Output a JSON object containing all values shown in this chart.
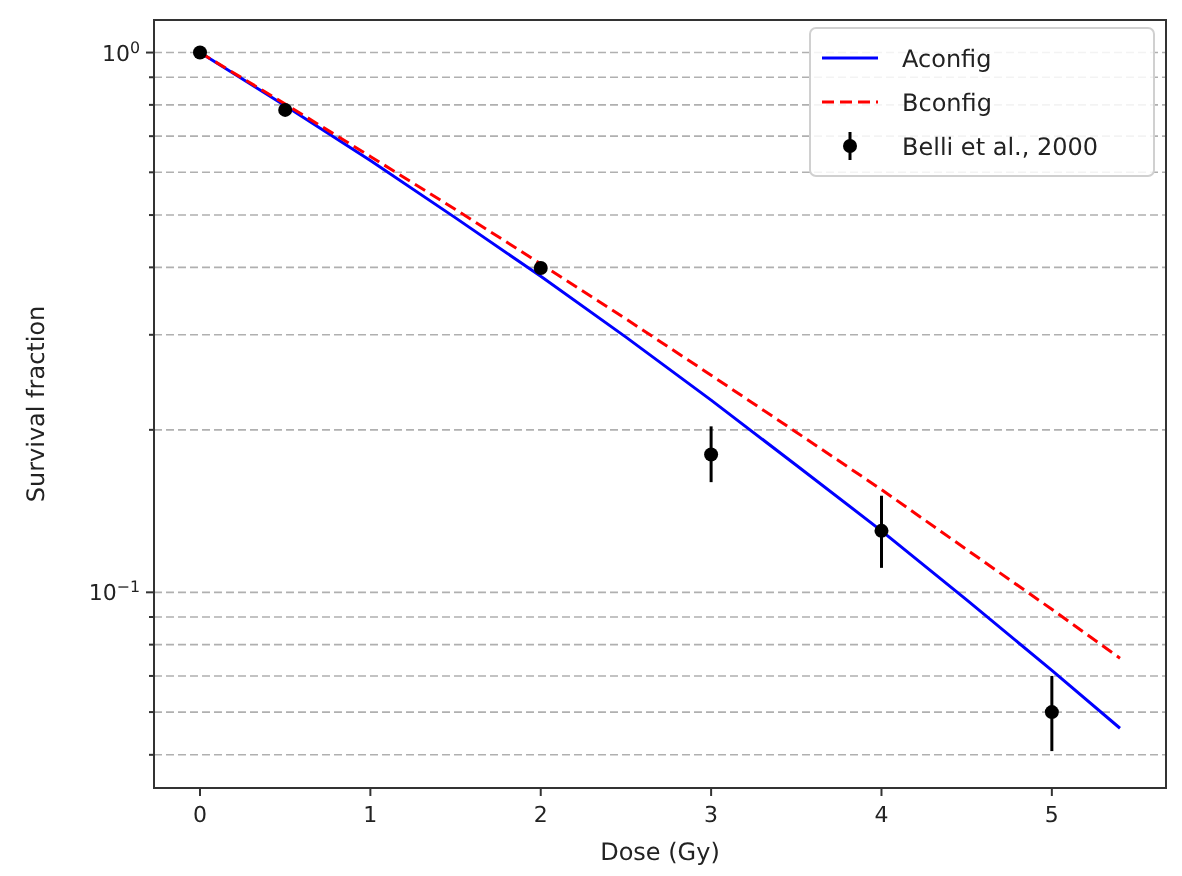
{
  "chart_data": {
    "type": "line",
    "xlabel": "Dose (Gy)",
    "ylabel": "Survival fraction",
    "log": "y",
    "grid": "y",
    "legend": "top right",
    "xlim": [
      -0.27,
      5.67
    ],
    "xticks": [
      0,
      1,
      2,
      3,
      4,
      5
    ],
    "ylim": [
      0.0434,
      1.149
    ],
    "yticks": [
      {
        "value": 0.05,
        "label": null
      },
      {
        "value": 0.06,
        "label": null
      },
      {
        "value": 0.07,
        "label": null
      },
      {
        "value": 0.08,
        "label": null
      },
      {
        "value": 0.09,
        "label": null
      },
      {
        "value": 0.1,
        "label": "10$^{−1}$"
      },
      {
        "value": 0.2,
        "label": null
      },
      {
        "value": 0.3,
        "label": null
      },
      {
        "value": 0.4,
        "label": null
      },
      {
        "value": 0.5,
        "label": null
      },
      {
        "value": 0.6,
        "label": null
      },
      {
        "value": 0.7,
        "label": null
      },
      {
        "value": 0.8,
        "label": null
      },
      {
        "value": 0.9,
        "label": null
      },
      {
        "value": 1,
        "label": "10$^{0}$"
      }
    ],
    "series": [
      {
        "name": "Aconfig",
        "color": "#0000ff",
        "line_style": "solid",
        "marker": "none",
        "x": [
          0,
          0.5,
          1,
          1.5,
          2,
          2.5,
          3,
          3.5,
          4,
          4.5,
          5,
          5.4
        ],
        "values": [
          1,
          0.797,
          0.631,
          0.494,
          0.385,
          0.297,
          0.227,
          0.172,
          0.13,
          0.0968,
          0.0717,
          0.056
        ]
      },
      {
        "name": "Bconfig",
        "color": "#ff0000",
        "line_style": "dashed",
        "marker": "none",
        "x": [
          0,
          0.5,
          1,
          1.5,
          2,
          2.5,
          3,
          3.5,
          4,
          4.5,
          5,
          5.4
        ],
        "values": [
          1,
          0.803,
          0.642,
          0.512,
          0.406,
          0.321,
          0.2525,
          0.198,
          0.155,
          0.12,
          0.093,
          0.0755
        ]
      },
      {
        "name": "Belli et al., 2000",
        "type": "scatter",
        "color": "#000000",
        "marker": "circle",
        "x": [
          0,
          0.5,
          2,
          3,
          4,
          5
        ],
        "values": [
          1,
          0.783,
          0.399,
          0.18,
          0.13,
          0.06
        ],
        "errors": [
          null,
          null,
          null,
          [
            0.16,
            0.203
          ],
          [
            0.111,
            0.151
          ],
          [
            0.0508,
            0.07
          ]
        ]
      }
    ]
  }
}
